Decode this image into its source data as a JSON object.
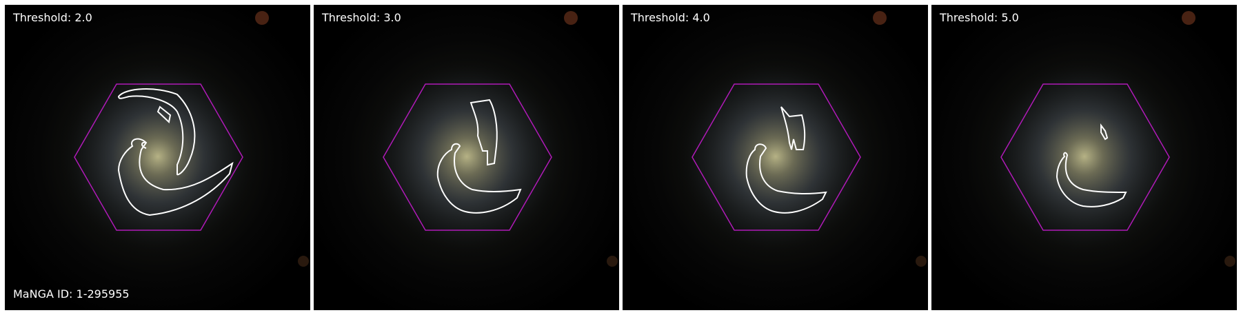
{
  "panels": [
    {
      "label": "Threshold: 2.0"
    },
    {
      "label": "Threshold: 3.0"
    },
    {
      "label": "Threshold: 4.0"
    },
    {
      "label": "Threshold: 5.0"
    }
  ],
  "manga_id": "MaNGA ID: 1-295955",
  "colors": {
    "hexagon": "#b01ab8",
    "contour": "#ffffff",
    "background": "#000000"
  }
}
